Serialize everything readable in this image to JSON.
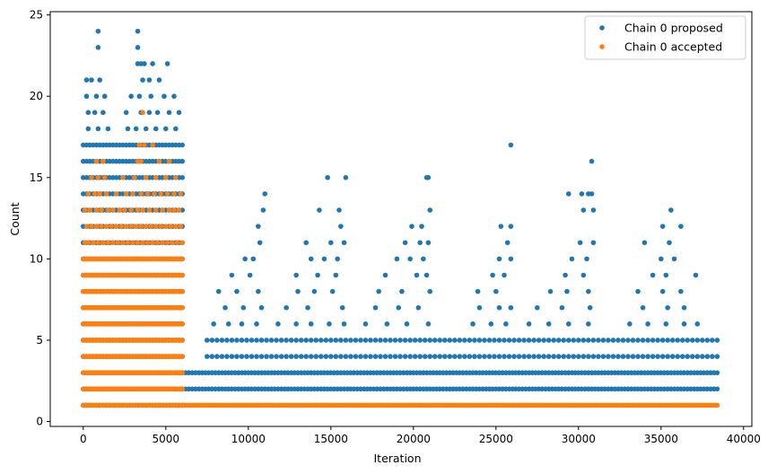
{
  "chart_data": {
    "type": "scatter",
    "xlabel": "Iteration",
    "ylabel": "Count",
    "xlim": [
      -2000,
      40500
    ],
    "ylim": [
      -0.3,
      25.2
    ],
    "xticks": [
      0,
      5000,
      10000,
      15000,
      20000,
      25000,
      30000,
      35000,
      40000
    ],
    "yticks": [
      0,
      5,
      10,
      15,
      20,
      25
    ],
    "grid": false,
    "legend_position": "top-right",
    "series": [
      {
        "name": "Chain 0 proposed",
        "color": "#1f77b4",
        "bands": [
          {
            "x_start": 0,
            "x_end": 6000,
            "y_min": 1,
            "y_max": 17,
            "step": 200
          },
          {
            "x_start": 6000,
            "x_end": 38500,
            "y_min": 2,
            "y_max": 3,
            "step": 200
          },
          {
            "x_start": 7500,
            "x_end": 38500,
            "y_min": 4,
            "y_max": 5,
            "step": 300
          }
        ],
        "points": [
          [
            900,
            24
          ],
          [
            3300,
            24
          ],
          [
            900,
            23
          ],
          [
            3300,
            23
          ],
          [
            3300,
            22
          ],
          [
            3500,
            22
          ],
          [
            3700,
            22
          ],
          [
            4200,
            22
          ],
          [
            5100,
            22
          ],
          [
            200,
            21
          ],
          [
            500,
            21
          ],
          [
            1000,
            21
          ],
          [
            3600,
            21
          ],
          [
            4000,
            21
          ],
          [
            4600,
            21
          ],
          [
            200,
            20
          ],
          [
            800,
            20
          ],
          [
            1300,
            20
          ],
          [
            2900,
            20
          ],
          [
            3400,
            20
          ],
          [
            4100,
            20
          ],
          [
            4900,
            20
          ],
          [
            5500,
            20
          ],
          [
            300,
            19
          ],
          [
            700,
            19
          ],
          [
            1200,
            19
          ],
          [
            2600,
            19
          ],
          [
            3500,
            19
          ],
          [
            4000,
            19
          ],
          [
            4500,
            19
          ],
          [
            5200,
            19
          ],
          [
            5800,
            19
          ],
          [
            300,
            18
          ],
          [
            900,
            18
          ],
          [
            1500,
            18
          ],
          [
            2700,
            18
          ],
          [
            3200,
            18
          ],
          [
            3800,
            18
          ],
          [
            4400,
            18
          ],
          [
            5000,
            18
          ],
          [
            5600,
            18
          ],
          [
            25900,
            17
          ],
          [
            30800,
            16
          ],
          [
            11000,
            14
          ],
          [
            14800,
            15
          ],
          [
            15900,
            15
          ],
          [
            20800,
            15
          ],
          [
            20900,
            15
          ],
          [
            29400,
            14
          ],
          [
            30200,
            14
          ],
          [
            30600,
            14
          ],
          [
            30800,
            14
          ],
          [
            10900,
            13
          ],
          [
            14300,
            13
          ],
          [
            15500,
            13
          ],
          [
            21000,
            13
          ],
          [
            25300,
            12
          ],
          [
            25900,
            12
          ],
          [
            30300,
            13
          ],
          [
            30900,
            13
          ],
          [
            35600,
            13
          ],
          [
            10600,
            12
          ],
          [
            15600,
            12
          ],
          [
            19900,
            12
          ],
          [
            20500,
            12
          ],
          [
            35100,
            12
          ],
          [
            36200,
            12
          ],
          [
            10700,
            11
          ],
          [
            13500,
            11
          ],
          [
            15000,
            11
          ],
          [
            15800,
            11
          ],
          [
            19500,
            11
          ],
          [
            20400,
            11
          ],
          [
            20900,
            11
          ],
          [
            25700,
            11
          ],
          [
            30100,
            11
          ],
          [
            30900,
            11
          ],
          [
            34000,
            11
          ],
          [
            35500,
            11
          ],
          [
            9800,
            10
          ],
          [
            10300,
            10
          ],
          [
            13800,
            10
          ],
          [
            14600,
            10
          ],
          [
            15400,
            10
          ],
          [
            19000,
            10
          ],
          [
            19800,
            10
          ],
          [
            20600,
            10
          ],
          [
            25200,
            10
          ],
          [
            25900,
            10
          ],
          [
            29600,
            10
          ],
          [
            30500,
            10
          ],
          [
            35000,
            10
          ],
          [
            35800,
            10
          ],
          [
            9000,
            9
          ],
          [
            10100,
            9
          ],
          [
            12900,
            9
          ],
          [
            14200,
            9
          ],
          [
            15300,
            9
          ],
          [
            18300,
            9
          ],
          [
            20200,
            9
          ],
          [
            20800,
            9
          ],
          [
            24800,
            9
          ],
          [
            25500,
            9
          ],
          [
            29200,
            9
          ],
          [
            30300,
            9
          ],
          [
            34500,
            9
          ],
          [
            35300,
            9
          ],
          [
            37100,
            9
          ],
          [
            8200,
            8
          ],
          [
            9300,
            8
          ],
          [
            10600,
            8
          ],
          [
            13000,
            8
          ],
          [
            14000,
            8
          ],
          [
            15100,
            8
          ],
          [
            17900,
            8
          ],
          [
            19300,
            8
          ],
          [
            21000,
            8
          ],
          [
            23900,
            8
          ],
          [
            25000,
            8
          ],
          [
            28300,
            8
          ],
          [
            29300,
            8
          ],
          [
            30600,
            8
          ],
          [
            33600,
            8
          ],
          [
            35100,
            8
          ],
          [
            36200,
            8
          ],
          [
            8600,
            7
          ],
          [
            9700,
            7
          ],
          [
            10800,
            7
          ],
          [
            12300,
            7
          ],
          [
            13600,
            7
          ],
          [
            15700,
            7
          ],
          [
            17700,
            7
          ],
          [
            19100,
            7
          ],
          [
            20300,
            7
          ],
          [
            24000,
            7
          ],
          [
            25200,
            7
          ],
          [
            25900,
            7
          ],
          [
            27500,
            7
          ],
          [
            29000,
            7
          ],
          [
            30700,
            7
          ],
          [
            33900,
            7
          ],
          [
            35400,
            7
          ],
          [
            36400,
            7
          ],
          [
            7900,
            6
          ],
          [
            8800,
            6
          ],
          [
            9600,
            6
          ],
          [
            10500,
            6
          ],
          [
            11800,
            6
          ],
          [
            12900,
            6
          ],
          [
            13800,
            6
          ],
          [
            14900,
            6
          ],
          [
            15800,
            6
          ],
          [
            17100,
            6
          ],
          [
            18400,
            6
          ],
          [
            19600,
            6
          ],
          [
            20900,
            6
          ],
          [
            23600,
            6
          ],
          [
            24700,
            6
          ],
          [
            25600,
            6
          ],
          [
            27000,
            6
          ],
          [
            28200,
            6
          ],
          [
            29400,
            6
          ],
          [
            30600,
            6
          ],
          [
            33100,
            6
          ],
          [
            34200,
            6
          ],
          [
            35300,
            6
          ],
          [
            36400,
            6
          ],
          [
            37200,
            6
          ]
        ]
      },
      {
        "name": "Chain 0 accepted",
        "color": "#ff7f0e",
        "bands": [
          {
            "x_start": 0,
            "x_end": 6000,
            "y_min": 1,
            "y_max": 1,
            "step": 150
          },
          {
            "x_start": 0,
            "x_end": 6000,
            "y_min": 2,
            "y_max": 10,
            "step": 100
          },
          {
            "x_start": 6000,
            "x_end": 38500,
            "y_min": 1,
            "y_max": 1,
            "step": 120
          }
        ],
        "points": [
          [
            3600,
            19
          ],
          [
            3400,
            17
          ],
          [
            3700,
            17
          ],
          [
            4200,
            17
          ],
          [
            3300,
            16
          ],
          [
            3500,
            16
          ],
          [
            800,
            16
          ],
          [
            1200,
            16
          ],
          [
            4600,
            16
          ],
          [
            5200,
            16
          ],
          [
            500,
            15
          ],
          [
            900,
            15
          ],
          [
            1300,
            15
          ],
          [
            2400,
            15
          ],
          [
            3100,
            15
          ],
          [
            3800,
            15
          ],
          [
            4400,
            15
          ],
          [
            5000,
            15
          ],
          [
            5600,
            15
          ],
          [
            300,
            14
          ],
          [
            700,
            14
          ],
          [
            1000,
            14
          ],
          [
            1400,
            14
          ],
          [
            2000,
            14
          ],
          [
            2600,
            14
          ],
          [
            3000,
            14
          ],
          [
            3500,
            14
          ],
          [
            3900,
            14
          ],
          [
            4300,
            14
          ],
          [
            4700,
            14
          ],
          [
            5100,
            14
          ],
          [
            5500,
            14
          ],
          [
            5900,
            14
          ],
          [
            100,
            13
          ],
          [
            400,
            13
          ],
          [
            800,
            13
          ],
          [
            1100,
            13
          ],
          [
            1500,
            13
          ],
          [
            1800,
            13
          ],
          [
            2200,
            13
          ],
          [
            2500,
            13
          ],
          [
            2900,
            13
          ],
          [
            3300,
            13
          ],
          [
            3600,
            13
          ],
          [
            4000,
            13
          ],
          [
            4400,
            13
          ],
          [
            4800,
            13
          ],
          [
            5200,
            13
          ],
          [
            5500,
            13
          ],
          [
            5800,
            13
          ],
          [
            200,
            12
          ],
          [
            500,
            12
          ],
          [
            800,
            12
          ],
          [
            1100,
            12
          ],
          [
            1400,
            12
          ],
          [
            1700,
            12
          ],
          [
            2000,
            12
          ],
          [
            2300,
            12
          ],
          [
            2600,
            12
          ],
          [
            2900,
            12
          ],
          [
            3200,
            12
          ],
          [
            3500,
            12
          ],
          [
            3800,
            12
          ],
          [
            4100,
            12
          ],
          [
            4400,
            12
          ],
          [
            4700,
            12
          ],
          [
            5000,
            12
          ],
          [
            5300,
            12
          ],
          [
            5600,
            12
          ],
          [
            5900,
            12
          ],
          [
            100,
            11
          ],
          [
            300,
            11
          ],
          [
            600,
            11
          ],
          [
            900,
            11
          ],
          [
            1200,
            11
          ],
          [
            1500,
            11
          ],
          [
            1800,
            11
          ],
          [
            2100,
            11
          ],
          [
            2400,
            11
          ],
          [
            2700,
            11
          ],
          [
            3000,
            11
          ],
          [
            3300,
            11
          ],
          [
            3600,
            11
          ],
          [
            3900,
            11
          ],
          [
            4200,
            11
          ],
          [
            4500,
            11
          ],
          [
            4800,
            11
          ],
          [
            5100,
            11
          ],
          [
            5400,
            11
          ],
          [
            5700,
            11
          ],
          [
            6000,
            11
          ]
        ]
      }
    ]
  }
}
